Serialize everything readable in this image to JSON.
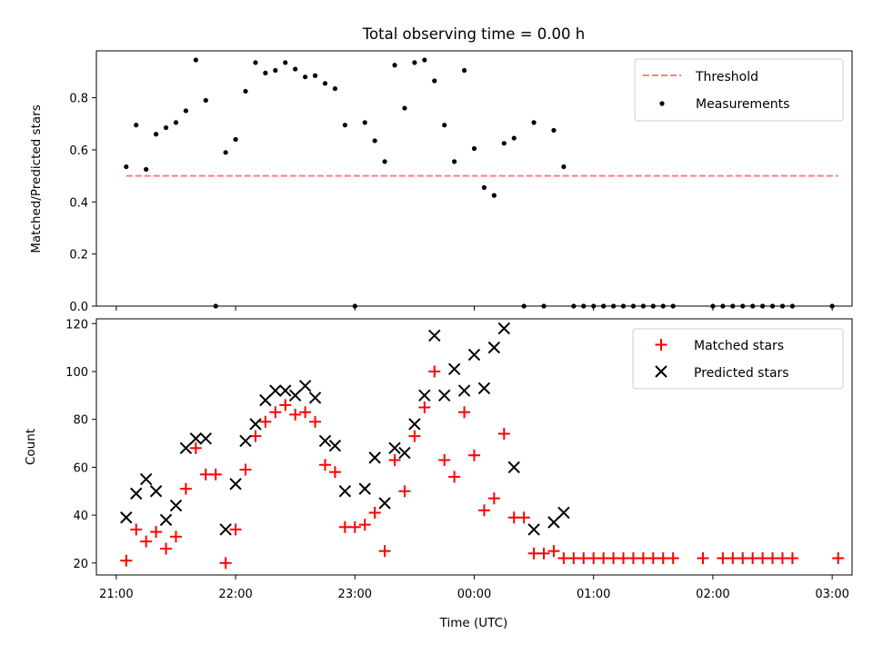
{
  "title": "Total observing time = 0.00 h",
  "colors": {
    "threshold": "#ff7f7f",
    "measurements": "#000000",
    "matched": "#ff0000",
    "predicted": "#000000",
    "axes": "#000000"
  },
  "chart_data": [
    {
      "type": "scatter",
      "ylabel": "Matched/Predicted stars",
      "xlabel": "",
      "xlim": [
        "20:50",
        "03:10"
      ],
      "ylim": [
        0.0,
        0.98
      ],
      "yticks": [
        "0.0",
        "0.2",
        "0.4",
        "0.6",
        "0.8"
      ],
      "xtick_labels_shown": false,
      "legend_position": "upper right",
      "threshold": {
        "name": "Threshold",
        "style": "dashed",
        "y": 0.5,
        "x_range": [
          "21:05",
          "03:03"
        ]
      },
      "series": [
        {
          "name": "Measurements",
          "marker": "dot",
          "points": [
            [
              "21:05",
              0.535
            ],
            [
              "21:10",
              0.695
            ],
            [
              "21:15",
              0.525
            ],
            [
              "21:20",
              0.66
            ],
            [
              "21:25",
              0.685
            ],
            [
              "21:30",
              0.705
            ],
            [
              "21:35",
              0.75
            ],
            [
              "21:40",
              0.945
            ],
            [
              "21:45",
              0.79
            ],
            [
              "21:50",
              0.0
            ],
            [
              "21:55",
              0.59
            ],
            [
              "22:00",
              0.64
            ],
            [
              "22:05",
              0.825
            ],
            [
              "22:10",
              0.935
            ],
            [
              "22:15",
              0.895
            ],
            [
              "22:20",
              0.905
            ],
            [
              "22:25",
              0.935
            ],
            [
              "22:30",
              0.91
            ],
            [
              "22:35",
              0.88
            ],
            [
              "22:40",
              0.885
            ],
            [
              "22:45",
              0.855
            ],
            [
              "22:50",
              0.835
            ],
            [
              "22:55",
              0.695
            ],
            [
              "23:00",
              0.0
            ],
            [
              "23:05",
              0.705
            ],
            [
              "23:10",
              0.635
            ],
            [
              "23:15",
              0.555
            ],
            [
              "23:20",
              0.925
            ],
            [
              "23:25",
              0.76
            ],
            [
              "23:30",
              0.935
            ],
            [
              "23:35",
              0.945
            ],
            [
              "23:40",
              0.865
            ],
            [
              "23:45",
              0.695
            ],
            [
              "23:50",
              0.555
            ],
            [
              "23:55",
              0.905
            ],
            [
              "00:00",
              0.605
            ],
            [
              "00:05",
              0.455
            ],
            [
              "00:10",
              0.425
            ],
            [
              "00:15",
              0.625
            ],
            [
              "00:20",
              0.645
            ],
            [
              "00:25",
              0.0
            ],
            [
              "00:30",
              0.705
            ],
            [
              "00:35",
              0.0
            ],
            [
              "00:40",
              0.675
            ],
            [
              "00:45",
              0.535
            ],
            [
              "00:50",
              0.0
            ],
            [
              "00:55",
              0.0
            ],
            [
              "01:00",
              0.0
            ],
            [
              "01:05",
              0.0
            ],
            [
              "01:10",
              0.0
            ],
            [
              "01:15",
              0.0
            ],
            [
              "01:20",
              0.0
            ],
            [
              "01:25",
              0.0
            ],
            [
              "01:30",
              0.0
            ],
            [
              "01:35",
              0.0
            ],
            [
              "01:40",
              0.0
            ],
            [
              "02:00",
              0.0
            ],
            [
              "02:05",
              0.0
            ],
            [
              "02:10",
              0.0
            ],
            [
              "02:15",
              0.0
            ],
            [
              "02:20",
              0.0
            ],
            [
              "02:25",
              0.0
            ],
            [
              "02:30",
              0.0
            ],
            [
              "02:35",
              0.0
            ],
            [
              "02:40",
              0.0
            ],
            [
              "03:00",
              0.0
            ]
          ]
        }
      ]
    },
    {
      "type": "scatter",
      "ylabel": "Count",
      "xlabel": "Time (UTC)",
      "xlim": [
        "20:50",
        "03:10"
      ],
      "ylim": [
        15,
        122
      ],
      "yticks": [
        "20",
        "40",
        "60",
        "80",
        "100",
        "120"
      ],
      "xticks": [
        "21:00",
        "22:00",
        "23:00",
        "00:00",
        "01:00",
        "02:00",
        "03:00"
      ],
      "legend_position": "upper right",
      "series": [
        {
          "name": "Matched stars",
          "marker": "plus",
          "points": [
            [
              "21:05",
              21
            ],
            [
              "21:10",
              34
            ],
            [
              "21:15",
              29
            ],
            [
              "21:20",
              33
            ],
            [
              "21:25",
              26
            ],
            [
              "21:30",
              31
            ],
            [
              "21:35",
              51
            ],
            [
              "21:40",
              68
            ],
            [
              "21:45",
              57
            ],
            [
              "21:50",
              57
            ],
            [
              "21:55",
              20
            ],
            [
              "22:00",
              34
            ],
            [
              "22:05",
              59
            ],
            [
              "22:10",
              73
            ],
            [
              "22:15",
              79
            ],
            [
              "22:20",
              83
            ],
            [
              "22:25",
              86
            ],
            [
              "22:30",
              82
            ],
            [
              "22:35",
              83
            ],
            [
              "22:40",
              79
            ],
            [
              "22:45",
              61
            ],
            [
              "22:50",
              58
            ],
            [
              "22:55",
              35
            ],
            [
              "23:00",
              35
            ],
            [
              "23:05",
              36
            ],
            [
              "23:10",
              41
            ],
            [
              "23:15",
              25
            ],
            [
              "23:20",
              63
            ],
            [
              "23:25",
              50
            ],
            [
              "23:30",
              73
            ],
            [
              "23:35",
              85
            ],
            [
              "23:40",
              100
            ],
            [
              "23:45",
              63
            ],
            [
              "23:50",
              56
            ],
            [
              "23:55",
              83
            ],
            [
              "00:00",
              65
            ],
            [
              "00:05",
              42
            ],
            [
              "00:10",
              47
            ],
            [
              "00:15",
              74
            ],
            [
              "00:20",
              39
            ],
            [
              "00:25",
              39
            ],
            [
              "00:30",
              24
            ],
            [
              "00:35",
              24
            ],
            [
              "00:40",
              25
            ],
            [
              "00:45",
              22
            ],
            [
              "00:50",
              22
            ],
            [
              "00:55",
              22
            ],
            [
              "01:00",
              22
            ],
            [
              "01:05",
              22
            ],
            [
              "01:10",
              22
            ],
            [
              "01:15",
              22
            ],
            [
              "01:20",
              22
            ],
            [
              "01:25",
              22
            ],
            [
              "01:30",
              22
            ],
            [
              "01:35",
              22
            ],
            [
              "01:40",
              22
            ],
            [
              "01:55",
              22
            ],
            [
              "02:05",
              22
            ],
            [
              "02:10",
              22
            ],
            [
              "02:15",
              22
            ],
            [
              "02:20",
              22
            ],
            [
              "02:25",
              22
            ],
            [
              "02:30",
              22
            ],
            [
              "02:35",
              22
            ],
            [
              "02:40",
              22
            ],
            [
              "03:03",
              22
            ]
          ]
        },
        {
          "name": "Predicted stars",
          "marker": "x",
          "points": [
            [
              "21:05",
              39
            ],
            [
              "21:10",
              49
            ],
            [
              "21:15",
              55
            ],
            [
              "21:20",
              50
            ],
            [
              "21:25",
              38
            ],
            [
              "21:30",
              44
            ],
            [
              "21:35",
              68
            ],
            [
              "21:40",
              72
            ],
            [
              "21:45",
              72
            ],
            [
              "21:55",
              34
            ],
            [
              "22:00",
              53
            ],
            [
              "22:05",
              71
            ],
            [
              "22:10",
              78
            ],
            [
              "22:15",
              88
            ],
            [
              "22:20",
              92
            ],
            [
              "22:25",
              92
            ],
            [
              "22:30",
              90
            ],
            [
              "22:35",
              94
            ],
            [
              "22:40",
              89
            ],
            [
              "22:45",
              71
            ],
            [
              "22:50",
              69
            ],
            [
              "22:55",
              50
            ],
            [
              "23:05",
              51
            ],
            [
              "23:10",
              64
            ],
            [
              "23:15",
              45
            ],
            [
              "23:20",
              68
            ],
            [
              "23:25",
              66
            ],
            [
              "23:30",
              78
            ],
            [
              "23:35",
              90
            ],
            [
              "23:40",
              115
            ],
            [
              "23:45",
              90
            ],
            [
              "23:50",
              101
            ],
            [
              "23:55",
              92
            ],
            [
              "00:00",
              107
            ],
            [
              "00:05",
              93
            ],
            [
              "00:10",
              110
            ],
            [
              "00:15",
              118
            ],
            [
              "00:20",
              60
            ],
            [
              "00:30",
              34
            ],
            [
              "00:40",
              37
            ],
            [
              "00:45",
              41
            ]
          ]
        }
      ]
    }
  ]
}
